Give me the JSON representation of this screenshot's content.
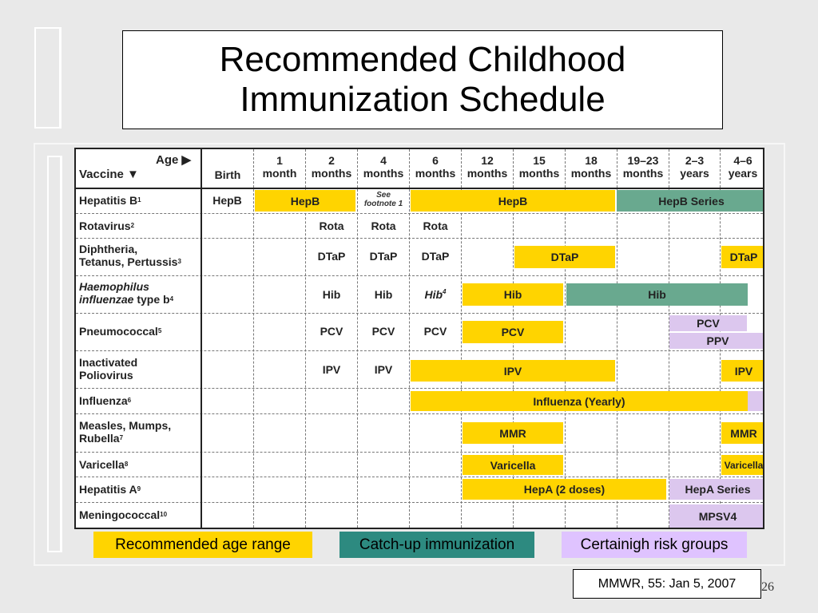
{
  "title": "Recommended Childhood\nImmunization Schedule",
  "table": {
    "corner": {
      "age": "Age ▶",
      "vaccine": "Vaccine ▼"
    },
    "age_columns": [
      {
        "line1": "Birth",
        "line2": ""
      },
      {
        "line1": "1",
        "line2": "month"
      },
      {
        "line1": "2",
        "line2": "months"
      },
      {
        "line1": "4",
        "line2": "months"
      },
      {
        "line1": "6",
        "line2": "months"
      },
      {
        "line1": "12",
        "line2": "months"
      },
      {
        "line1": "15",
        "line2": "months"
      },
      {
        "line1": "18",
        "line2": "months"
      },
      {
        "line1": "19–23",
        "line2": "months"
      },
      {
        "line1": "2–3",
        "line2": "years"
      },
      {
        "line1": "4–6",
        "line2": "years"
      }
    ],
    "vaccines": [
      {
        "name": "Hepatitis B",
        "sup": "1"
      },
      {
        "name": "Rotavirus",
        "sup": "2"
      },
      {
        "name": "Diphtheria,\nTetanus, Pertussis",
        "sup": "3"
      },
      {
        "name_part1": "Haemophilus\ninfluenzae",
        "name_part2": " type b",
        "sup": "4"
      },
      {
        "name": "Pneumococcal",
        "sup": "5"
      },
      {
        "name": "Inactivated\nPoliovirus",
        "sup": ""
      },
      {
        "name": "Influenza",
        "sup": "6"
      },
      {
        "name": "Measles, Mumps,\nRubella",
        "sup": "7"
      },
      {
        "name": "Varicella",
        "sup": "8"
      },
      {
        "name": "Hepatitis A",
        "sup": "9"
      },
      {
        "name": "Meningococcal",
        "sup": "10"
      }
    ],
    "cells": {
      "hepb_birth": "HepB",
      "hepb_bar1": "HepB",
      "hepb_footnote": "See\nfootnote 1",
      "hepb_bar2": "HepB",
      "hepb_series": "HepB Series",
      "rota": [
        "Rota",
        "Rota",
        "Rota"
      ],
      "dtap": [
        "DTaP",
        "DTaP",
        "DTaP"
      ],
      "dtap_bar": "DTaP",
      "dtap_bar2": "DTaP",
      "hib": [
        "Hib",
        "Hib"
      ],
      "hib_6": "Hib",
      "hib_6_sup": "4",
      "hib_bar": "Hib",
      "hib_catchup": "Hib",
      "pcv": [
        "PCV",
        "PCV",
        "PCV"
      ],
      "pcv_bar": "PCV",
      "pcv_risk": "PCV",
      "ppv_risk": "PPV",
      "ipv": [
        "IPV",
        "IPV"
      ],
      "ipv_bar": "IPV",
      "ipv_bar2": "IPV",
      "influenza_bar": "Influenza (Yearly)",
      "mmr_bar": "MMR",
      "mmr_bar2": "MMR",
      "varicella_bar": "Varicella",
      "varicella_bar2": "Varicella",
      "hepa_bar": "HepA (2 doses)",
      "hepa_series": "HepA Series",
      "mpsv4": "MPSV4"
    }
  },
  "legend": {
    "recommended": "Recommended age range",
    "catchup": "Catch-up immunization",
    "risk": "Certainigh risk groups"
  },
  "source": "MMWR, 55: Jan 5, 2007",
  "page_number": "26",
  "colors": {
    "recommended": "#ffd400",
    "catchup": "#69a98f",
    "risk": "#dcc7ee"
  }
}
